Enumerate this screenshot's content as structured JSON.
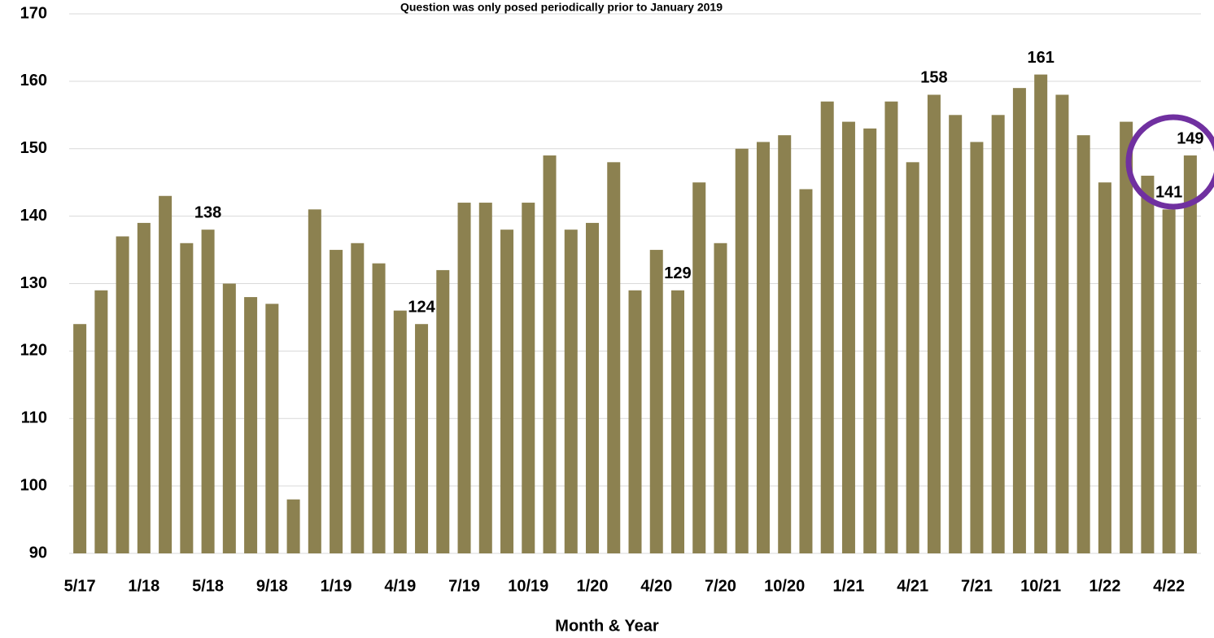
{
  "chart_data": {
    "type": "bar",
    "annotation": "Question was only posed periodically prior to January 2019",
    "x_label": "Month & Year",
    "categories": [
      "5/17",
      null,
      null,
      "1/18",
      null,
      null,
      "5/18",
      null,
      null,
      "9/18",
      null,
      null,
      "1/19",
      null,
      null,
      "4/19",
      null,
      null,
      "7/19",
      null,
      null,
      "10/19",
      null,
      null,
      "1/20",
      null,
      null,
      "4/20",
      null,
      null,
      "7/20",
      null,
      null,
      "10/20",
      null,
      null,
      "1/21",
      null,
      null,
      "4/21",
      null,
      null,
      "7/21",
      null,
      null,
      "10/21",
      null,
      null,
      "1/22",
      null,
      null,
      "4/22",
      null
    ],
    "values": [
      124,
      129,
      137,
      139,
      143,
      136,
      138,
      130,
      128,
      127,
      98,
      141,
      135,
      136,
      133,
      126,
      124,
      132,
      142,
      142,
      138,
      142,
      149,
      138,
      139,
      148,
      129,
      135,
      129,
      145,
      136,
      150,
      151,
      152,
      144,
      157,
      154,
      153,
      157,
      148,
      158,
      155,
      151,
      155,
      159,
      161,
      158,
      152,
      145,
      154,
      146,
      141,
      149
    ],
    "labeled": [
      6,
      16,
      28,
      40,
      45,
      51,
      52
    ],
    "color": "#8c8150",
    "ylim": [
      90,
      170
    ],
    "yticks": [
      90,
      100,
      110,
      120,
      130,
      140,
      150,
      160,
      170
    ],
    "grid": true
  }
}
